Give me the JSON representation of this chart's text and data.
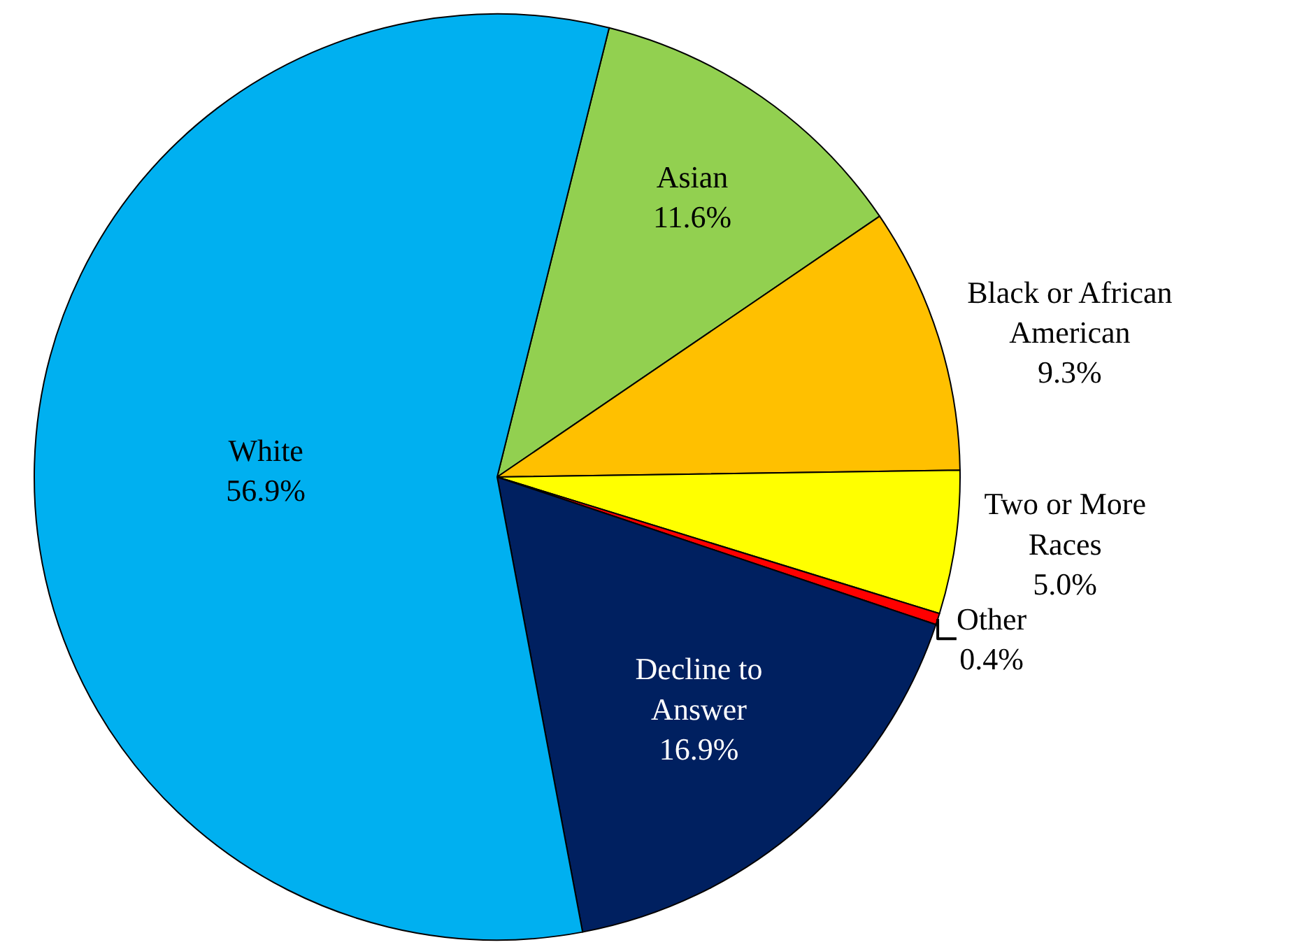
{
  "chart_data": {
    "type": "pie",
    "categories": [
      "Asian",
      "Black or African American",
      "Two or More Races",
      "Other",
      "Decline to Answer",
      "White"
    ],
    "values": [
      11.6,
      9.3,
      5.0,
      0.4,
      16.9,
      56.9
    ],
    "value_labels": [
      "11.6%",
      "9.3%",
      "5.0%",
      "0.4%",
      "16.9%",
      "56.9%"
    ],
    "colors": [
      "#92d050",
      "#ffc000",
      "#ffff00",
      "#ff0000",
      "#002060",
      "#00b0f0"
    ],
    "legend": false
  }
}
